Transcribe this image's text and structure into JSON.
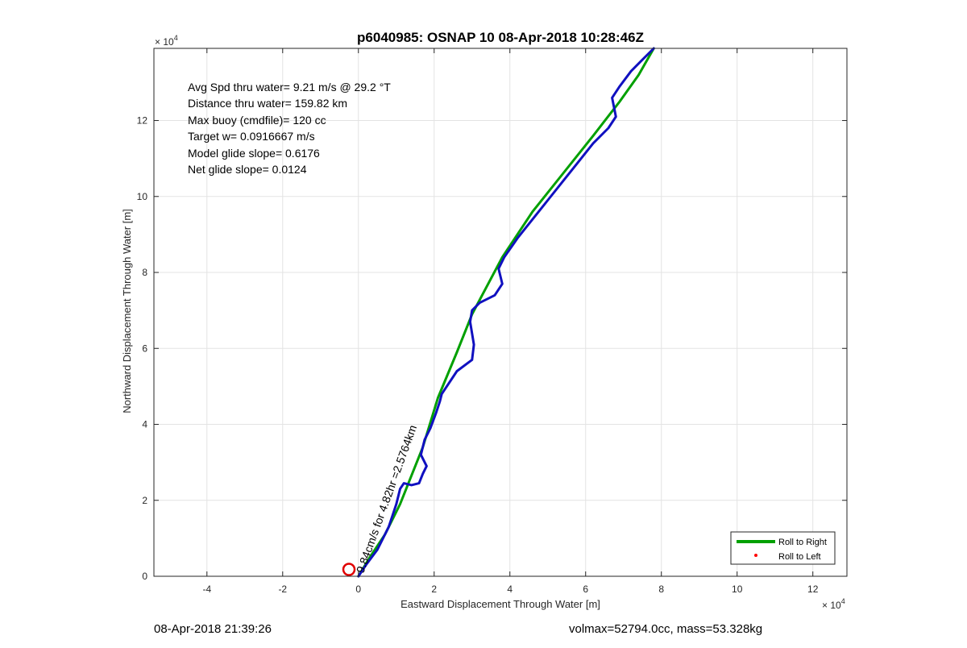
{
  "chart_data": {
    "type": "line",
    "title": "p6040985: OSNAP 10 08-Apr-2018 10:28:46Z",
    "xlabel": "Eastward Displacement Through Water [m]",
    "ylabel": "Northward Displacement Through Water [m]",
    "x_exponent": "×10^4",
    "y_exponent": "×10^4",
    "x_exponent_base": "× 10",
    "x_exponent_power": "4",
    "y_exponent_base": "× 10",
    "y_exponent_power": "4",
    "xlim": [
      -5.4,
      12.9
    ],
    "ylim": [
      0,
      13.9
    ],
    "xticks": [
      "-4",
      "-2",
      "0",
      "2",
      "4",
      "6",
      "8",
      "10",
      "12"
    ],
    "yticks": [
      "0",
      "2",
      "4",
      "6",
      "8",
      "10",
      "12"
    ],
    "grid": true,
    "legend_position": "bottom-right",
    "annotations": [
      "Avg Spd thru water=  9.21 m/s @  29.2 °T",
      "Distance thru water= 159.82 km",
      "Max buoy (cmdfile)= 120 cc",
      "Target w= 0.0916667 m/s",
      "Model glide slope= 0.6176",
      "Net glide slope= 0.0124"
    ],
    "track_label": "9.84cm/s for 4.82hr =2.5764km",
    "series": [
      {
        "name": "Roll to Right",
        "color": "#00a000",
        "style": "line",
        "x": [
          0.0,
          0.3,
          0.7,
          1.1,
          1.3,
          1.7,
          2.1,
          2.6,
          3.0,
          3.8,
          4.6,
          5.4,
          6.2,
          6.9,
          7.4,
          7.8
        ],
        "y": [
          0.0,
          0.5,
          1.1,
          1.9,
          2.4,
          3.4,
          4.7,
          5.9,
          6.9,
          8.4,
          9.6,
          10.6,
          11.6,
          12.5,
          13.2,
          13.9
        ]
      },
      {
        "name": "Roll to Left",
        "color": "#ff0000",
        "style": "marker"
      },
      {
        "color": "#1010c0",
        "style": "line",
        "x": [
          0.0,
          0.2,
          0.5,
          0.8,
          1.0,
          1.1,
          1.2,
          1.4,
          1.6,
          1.7,
          1.8,
          1.65,
          1.75,
          1.9,
          2.05,
          2.15,
          2.2,
          2.6,
          3.0,
          3.05,
          2.95,
          3.0,
          3.2,
          3.6,
          3.8,
          3.7,
          3.85,
          4.2,
          4.6,
          5.0,
          5.4,
          5.8,
          6.2,
          6.6,
          6.8,
          6.7,
          6.9,
          7.2,
          7.5,
          7.8
        ],
        "y": [
          0.0,
          0.3,
          0.7,
          1.3,
          1.9,
          2.3,
          2.45,
          2.4,
          2.45,
          2.7,
          2.9,
          3.2,
          3.6,
          3.9,
          4.3,
          4.6,
          4.8,
          5.4,
          5.7,
          6.1,
          6.7,
          7.0,
          7.2,
          7.4,
          7.7,
          8.1,
          8.4,
          8.9,
          9.4,
          9.9,
          10.4,
          10.9,
          11.4,
          11.8,
          12.1,
          12.6,
          12.9,
          13.3,
          13.6,
          13.9
        ]
      }
    ],
    "start_marker": {
      "x": -0.25,
      "y": 0.18,
      "color": "#e00000"
    }
  },
  "footer": {
    "timestamp": "08-Apr-2018 21:39:26",
    "vol_mass": "volmax=52794.0cc, mass=53.328kg"
  }
}
